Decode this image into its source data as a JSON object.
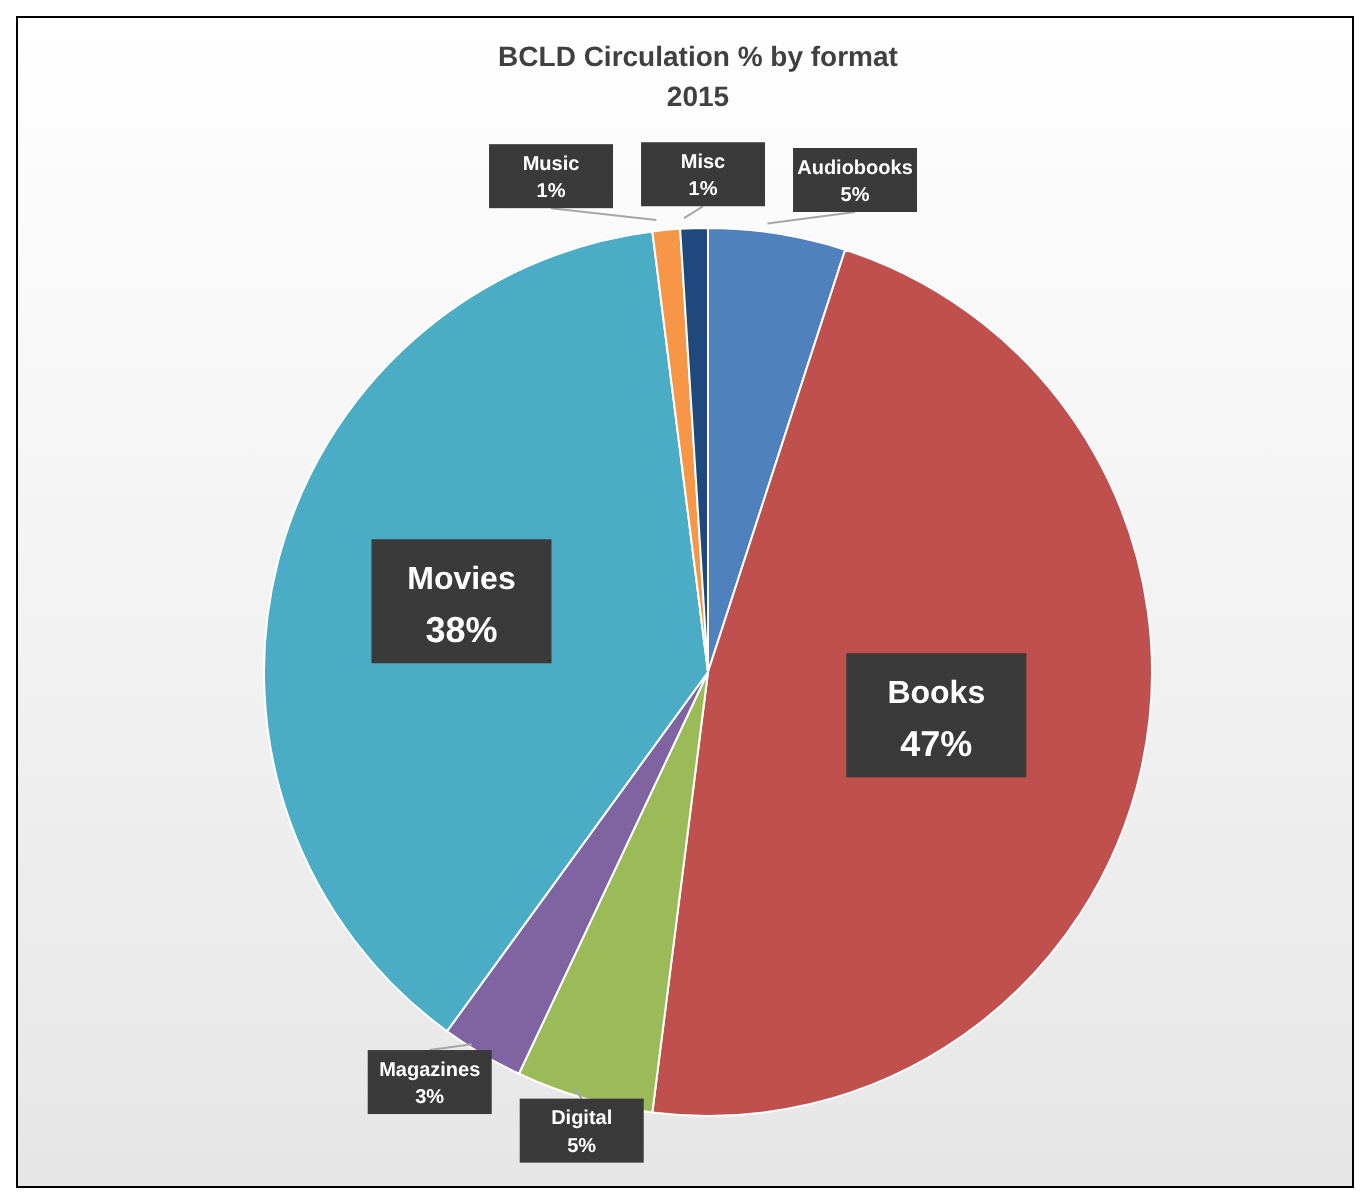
{
  "chart_data": {
    "type": "pie",
    "title": "BCLD Circulation % by format",
    "subtitle": "2015",
    "categories": [
      "Audiobooks",
      "Books",
      "Digital",
      "Magazines",
      "Movies",
      "Music",
      "Misc"
    ],
    "values": [
      5,
      47,
      5,
      3,
      38,
      1,
      1
    ],
    "value_labels": [
      "5%",
      "47%",
      "5%",
      "3%",
      "38%",
      "1%",
      "1%"
    ],
    "colors": [
      "#4f81bd",
      "#c0504d",
      "#9bbb59",
      "#8064a2",
      "#4bacc6",
      "#f79646",
      "#1f497d"
    ],
    "legend": false
  }
}
